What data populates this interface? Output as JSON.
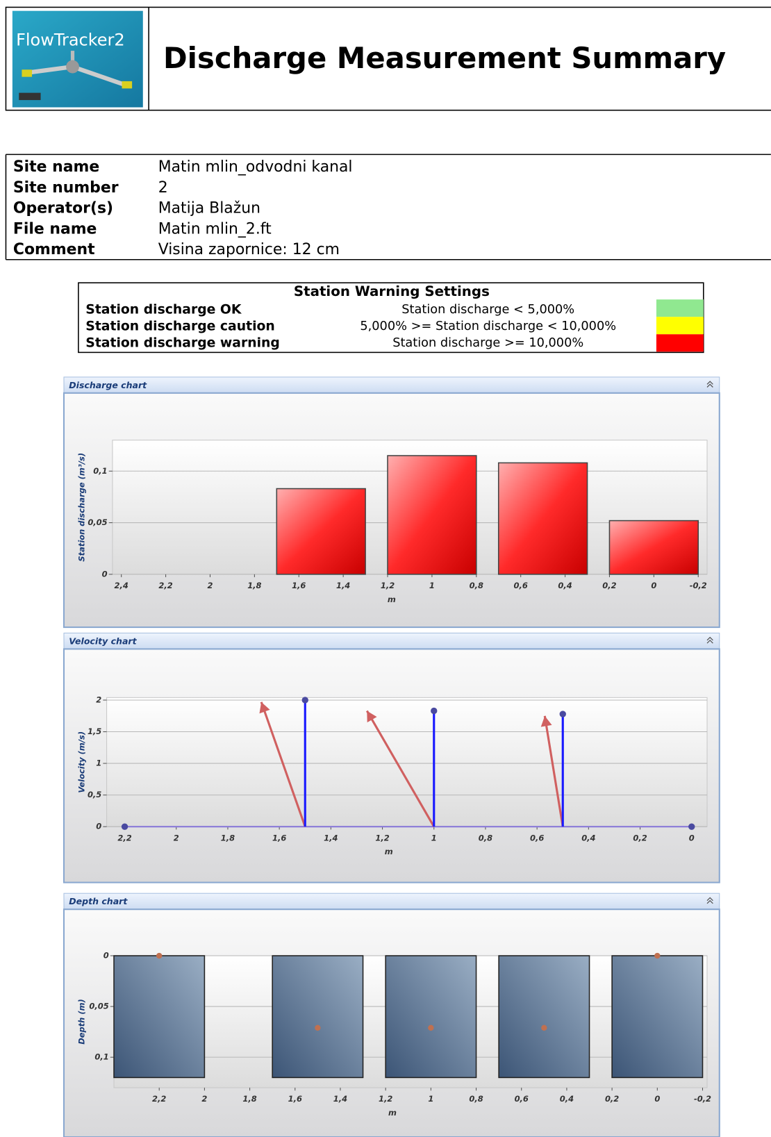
{
  "header": {
    "logo_text": "FlowTracker2",
    "title": "Discharge Measurement Summary"
  },
  "site_info": [
    [
      "Site name",
      "Matin mlin_odvodni kanal"
    ],
    [
      "Site number",
      "2"
    ],
    [
      "Operator(s)",
      "Matija Blažun"
    ],
    [
      "File name",
      "Matin mlin_2.ft"
    ],
    [
      "Comment",
      "Visina zapornice: 12 cm"
    ]
  ],
  "warning_settings": {
    "title": "Station Warning Settings",
    "rows": [
      {
        "label": "Station discharge OK",
        "rule": "Station discharge < 5,000%",
        "color": "#90e890"
      },
      {
        "label": "Station discharge caution",
        "rule": "5,000% >= Station discharge < 10,000%",
        "color": "#ffff00"
      },
      {
        "label": "Station discharge warning",
        "rule": "Station discharge >= 10,000%",
        "color": "#ff0000"
      }
    ]
  },
  "chart_data": [
    {
      "type": "bar",
      "title": "Discharge chart",
      "ylabel": "Station discharge (m³/s)",
      "xlabel": "m",
      "x": [
        1.5,
        1.0,
        0.5,
        0.0
      ],
      "values": [
        0.083,
        0.115,
        0.108,
        0.052
      ],
      "color": "#e8141c",
      "xlim": [
        2.44,
        -0.24
      ],
      "xticks": [
        {
          "value": 2.4,
          "label": "2,4"
        },
        {
          "value": 2.2,
          "label": "2,2"
        },
        2,
        {
          "value": 1.8,
          "label": "1,8"
        },
        {
          "value": 1.6,
          "label": "1,6"
        },
        {
          "value": 1.4,
          "label": "1,4"
        },
        {
          "value": 1.2,
          "label": "1,2"
        },
        1,
        {
          "value": 0.8,
          "label": "0,8"
        },
        {
          "value": 0.6,
          "label": "0,6"
        },
        {
          "value": 0.4,
          "label": "0,4"
        },
        {
          "value": 0.2,
          "label": "0,2"
        },
        0,
        {
          "value": -0.2,
          "label": "-0,2"
        }
      ],
      "ylim": [
        0,
        0.13
      ],
      "yticks": [
        0,
        {
          "value": 0.05,
          "label": "0,05"
        },
        {
          "value": 0.1,
          "label": "0,1"
        }
      ],
      "grid": true
    },
    {
      "type": "stem",
      "title": "Velocity chart",
      "ylabel": "Velocity (m/s)",
      "xlabel": "m",
      "x": [
        2.2,
        1.5,
        1.0,
        0.5,
        0.0
      ],
      "values": [
        0,
        2.0,
        1.83,
        1.78,
        0
      ],
      "color": "#1a1aff",
      "direction": {
        "x0": [
          1.5,
          1.0,
          0.5
        ],
        "x": [
          1.67,
          1.26,
          0.57
        ],
        "values": [
          1.97,
          1.83,
          1.75
        ],
        "color": "#d06060"
      },
      "xlim": [
        2.27,
        -0.06
      ],
      "xticks": [
        {
          "value": 2.2,
          "label": "2,2"
        },
        2,
        {
          "value": 1.8,
          "label": "1,8"
        },
        {
          "value": 1.6,
          "label": "1,6"
        },
        {
          "value": 1.4,
          "label": "1,4"
        },
        {
          "value": 1.2,
          "label": "1,2"
        },
        1,
        {
          "value": 0.8,
          "label": "0,8"
        },
        {
          "value": 0.6,
          "label": "0,6"
        },
        {
          "value": 0.4,
          "label": "0,4"
        },
        {
          "value": 0.2,
          "label": "0,2"
        },
        0
      ],
      "ylim": [
        0,
        2.04
      ],
      "yticks": [
        0,
        {
          "value": 0.5,
          "label": "0,5"
        },
        1,
        {
          "value": 1.5,
          "label": "1,5"
        },
        2
      ],
      "grid": true
    },
    {
      "type": "depth",
      "title": "Depth chart",
      "ylabel": "Depth (m)",
      "xlabel": "m",
      "x": [
        2.2,
        1.5,
        1.0,
        0.5,
        0.0
      ],
      "values": [
        0.12,
        0.12,
        0.12,
        0.12,
        0.12
      ],
      "point_depths": [
        0,
        0.071,
        0.071,
        0.071,
        0
      ],
      "color": "#5a7595",
      "point_color": "#c07050",
      "xlim": [
        2.4,
        -0.22
      ],
      "xticks": [
        {
          "value": 2.2,
          "label": "2,2"
        },
        2,
        {
          "value": 1.8,
          "label": "1,8"
        },
        {
          "value": 1.6,
          "label": "1,6"
        },
        {
          "value": 1.4,
          "label": "1,4"
        },
        {
          "value": 1.2,
          "label": "1,2"
        },
        1,
        {
          "value": 0.8,
          "label": "0,8"
        },
        {
          "value": 0.6,
          "label": "0,6"
        },
        {
          "value": 0.4,
          "label": "0,4"
        },
        {
          "value": 0.2,
          "label": "0,2"
        },
        0,
        {
          "value": -0.2,
          "label": "-0,2"
        }
      ],
      "ylim": [
        0.13,
        0
      ],
      "yticks": [
        0,
        {
          "value": 0.05,
          "label": "0,05"
        },
        {
          "value": 0.1,
          "label": "0,1"
        }
      ],
      "grid": true
    }
  ]
}
